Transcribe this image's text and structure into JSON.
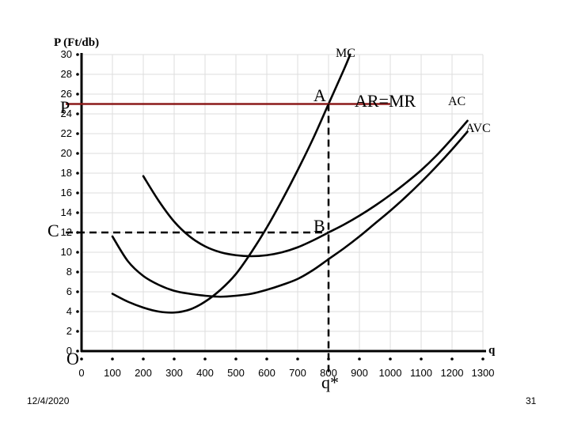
{
  "chart_data": {
    "type": "line",
    "title": "",
    "ylabel": "P (Ft/db)",
    "xlabel": "q",
    "xlim": [
      0,
      1300
    ],
    "ylim": [
      0,
      30
    ],
    "x_ticks": [
      0,
      100,
      200,
      300,
      400,
      500,
      600,
      700,
      800,
      900,
      1000,
      1100,
      1200,
      1300
    ],
    "y_ticks": [
      0,
      2,
      4,
      6,
      8,
      10,
      12,
      14,
      16,
      18,
      20,
      22,
      24,
      26,
      28,
      30
    ],
    "grid": true,
    "series": [
      {
        "name": "MC",
        "x": [
          100,
          150,
          200,
          250,
          300,
          350,
          400,
          450,
          500,
          550,
          600,
          650,
          700,
          750,
          800,
          850,
          870
        ],
        "y": [
          5.8,
          5.0,
          4.4,
          4.0,
          3.9,
          4.2,
          5.0,
          6.2,
          7.8,
          10.0,
          12.5,
          15.3,
          18.3,
          21.5,
          25.0,
          28.5,
          30.0
        ]
      },
      {
        "name": "AC",
        "x": [
          200,
          250,
          300,
          350,
          400,
          450,
          500,
          550,
          600,
          650,
          700,
          750,
          800,
          850,
          900,
          950,
          1000,
          1050,
          1100,
          1150,
          1200,
          1250
        ],
        "y": [
          17.7,
          15.2,
          13.1,
          11.6,
          10.6,
          10.0,
          9.7,
          9.6,
          9.7,
          10.0,
          10.5,
          11.2,
          12.0,
          12.8,
          13.7,
          14.7,
          15.8,
          17.0,
          18.3,
          19.8,
          21.5,
          23.3
        ]
      },
      {
        "name": "AVC",
        "x": [
          100,
          150,
          200,
          250,
          300,
          350,
          400,
          450,
          500,
          550,
          600,
          650,
          700,
          750,
          800,
          850,
          900,
          950,
          1000,
          1050,
          1100,
          1150,
          1200,
          1250
        ],
        "y": [
          11.6,
          9.1,
          7.6,
          6.7,
          6.1,
          5.8,
          5.6,
          5.5,
          5.6,
          5.8,
          6.2,
          6.7,
          7.3,
          8.2,
          9.3,
          10.4,
          11.6,
          12.9,
          14.2,
          15.6,
          17.1,
          18.7,
          20.4,
          22.2
        ]
      },
      {
        "name": "AR=MR",
        "x": [
          0,
          1000
        ],
        "y": [
          25,
          25
        ]
      }
    ],
    "guides": {
      "vertical_x": 800,
      "horizontal_C_y": 12
    },
    "annotations": {
      "P_label": "P",
      "C_label": "C",
      "O_label": "O",
      "A_label": "A",
      "B_label": "B",
      "q_star_label": "q*",
      "MC_label": "MC",
      "AC_label": "AC",
      "AVC_label": "AVC",
      "ARMR_label": "AR=MR"
    },
    "colors": {
      "curves": "#000000",
      "price_line": "#8b1a1a",
      "grid": "#dddddd"
    }
  },
  "footer": {
    "date": "12/4/2020",
    "page_number": "31"
  }
}
